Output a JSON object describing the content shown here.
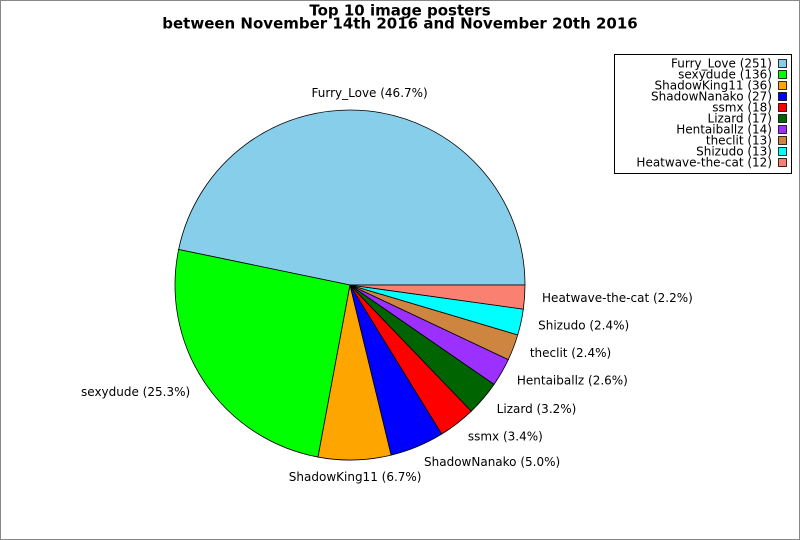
{
  "chart_data": {
    "type": "pie",
    "title": "Top 10 image posters",
    "subtitle": "between November 14th 2016 and November 20th 2016",
    "categories": [
      "Furry_Love",
      "sexydude",
      "ShadowKing11",
      "ShadowNanako",
      "ssmx",
      "Lizard",
      "Hentaiballz",
      "theclit",
      "Shizudo",
      "Heatwave-the-cat"
    ],
    "values": [
      46.7,
      25.3,
      6.7,
      5.0,
      3.4,
      3.2,
      2.6,
      2.4,
      2.4,
      2.2
    ],
    "value_labels": [
      "Furry_Love (46.7%)",
      "sexydude (25.3%)",
      "ShadowKing11 (6.7%)",
      "ShadowNanako (5.0%)",
      "ssmx (3.4%)",
      "Lizard (3.2%)",
      "Hentaiballz (2.6%)",
      "theclit (2.4%)",
      "Shizudo (2.4%)",
      "Heatwave-the-cat (2.2%)"
    ],
    "legend_labels": [
      "Furry_Love (251)",
      "sexydude (136)",
      "ShadowKing11 (36)",
      "ShadowNanako (27)",
      "ssmx (18)",
      "Lizard (17)",
      "Hentaiballz (14)",
      "theclit (13)",
      "Shizudo (13)",
      "Heatwave-the-cat (12)"
    ],
    "colors": [
      "#87ceeb",
      "#00ff00",
      "#ffa500",
      "#0000ff",
      "#ff0000",
      "#006400",
      "#9b30ff",
      "#cd853f",
      "#00ffff",
      "#fa8072"
    ],
    "legend_position": "upper right"
  }
}
